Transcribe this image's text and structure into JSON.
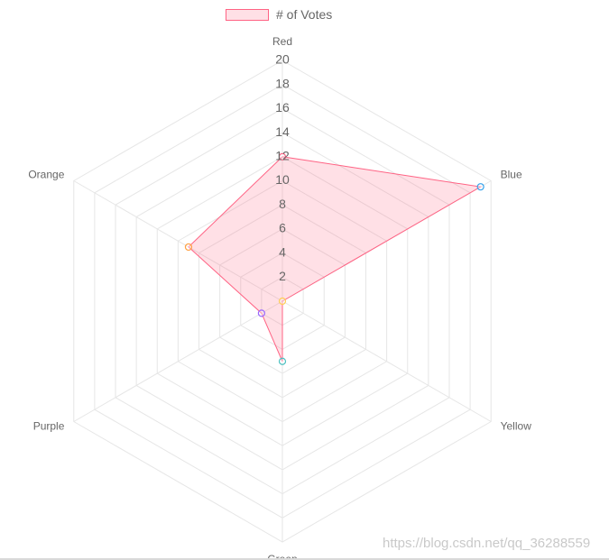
{
  "chart_data": {
    "type": "radar",
    "categories": [
      "Red",
      "Blue",
      "Yellow",
      "Green",
      "Purple",
      "Orange"
    ],
    "series": [
      {
        "name": "# of Votes",
        "values": [
          12,
          19,
          0,
          5,
          2,
          9
        ]
      }
    ],
    "scale": {
      "min": 0,
      "max": 20,
      "ticks": [
        "2",
        "4",
        "6",
        "8",
        "10",
        "12",
        "14",
        "16",
        "18",
        "20"
      ]
    },
    "grid": true,
    "legend_position": "top",
    "colors": {
      "border": "#ff6384",
      "fill": "rgba(255, 99, 132, 0.2)",
      "grid": "#e6e6e6",
      "point_colors": [
        "#ff6384",
        "#36a2eb",
        "#ffce56",
        "#4bc0c0",
        "#9966ff",
        "#ff9f40"
      ]
    }
  },
  "legend": {
    "label": "# of Votes"
  },
  "watermark": "https://blog.csdn.net/qq_36288559"
}
